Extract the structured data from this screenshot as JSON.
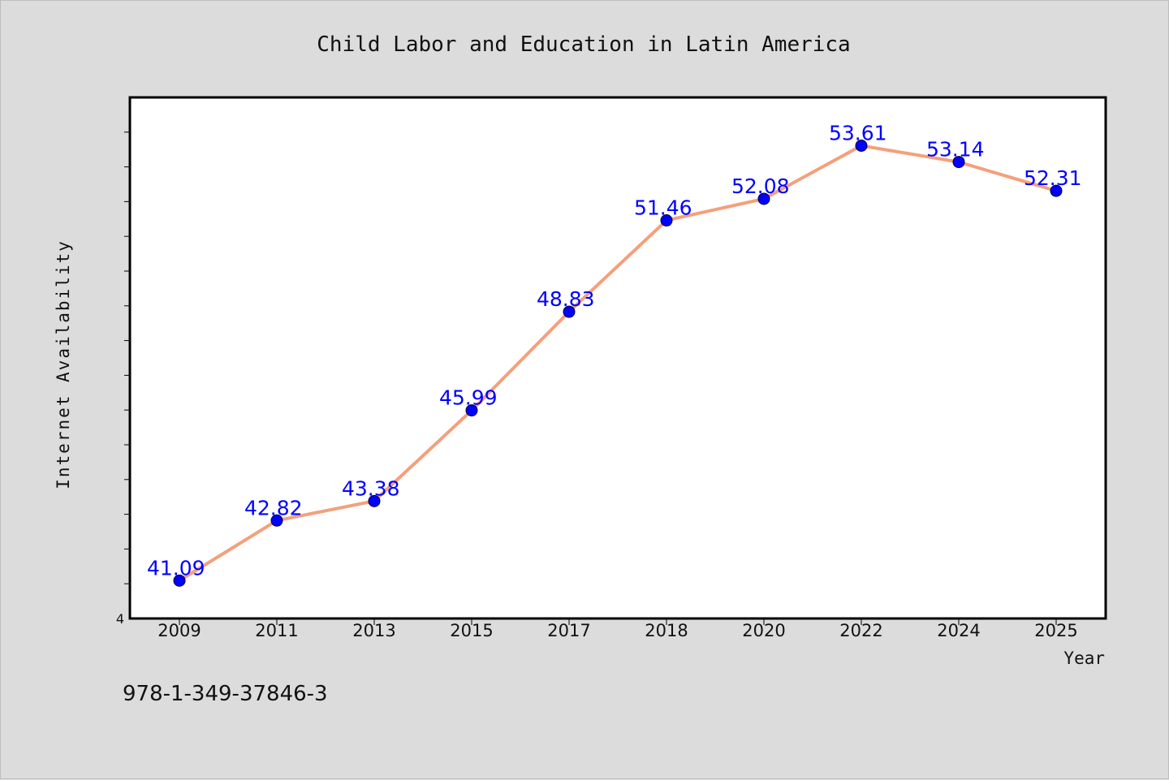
{
  "colors": {
    "background": "#dcdcdc",
    "plot_background": "#ffffff",
    "line": "#f4a07c",
    "marker": "#0000ff",
    "data_label": "#0000ff"
  },
  "footer": {
    "isbn": "978-1-349-37846-3"
  },
  "chart_data": {
    "type": "line",
    "title": "Child Labor and Education in Latin America",
    "xlabel": "Year",
    "ylabel": "Internet Availability",
    "categories": [
      "2009",
      "2011",
      "2013",
      "2015",
      "2017",
      "2018",
      "2020",
      "2022",
      "2024",
      "2025"
    ],
    "series": [
      {
        "values": [
          41.09,
          42.82,
          43.38,
          45.99,
          48.83,
          51.46,
          52.08,
          53.61,
          53.14,
          52.31
        ]
      }
    ],
    "ylim": [
      40,
      55
    ],
    "y_tick_label": "4",
    "grid": false,
    "legend": "none"
  }
}
